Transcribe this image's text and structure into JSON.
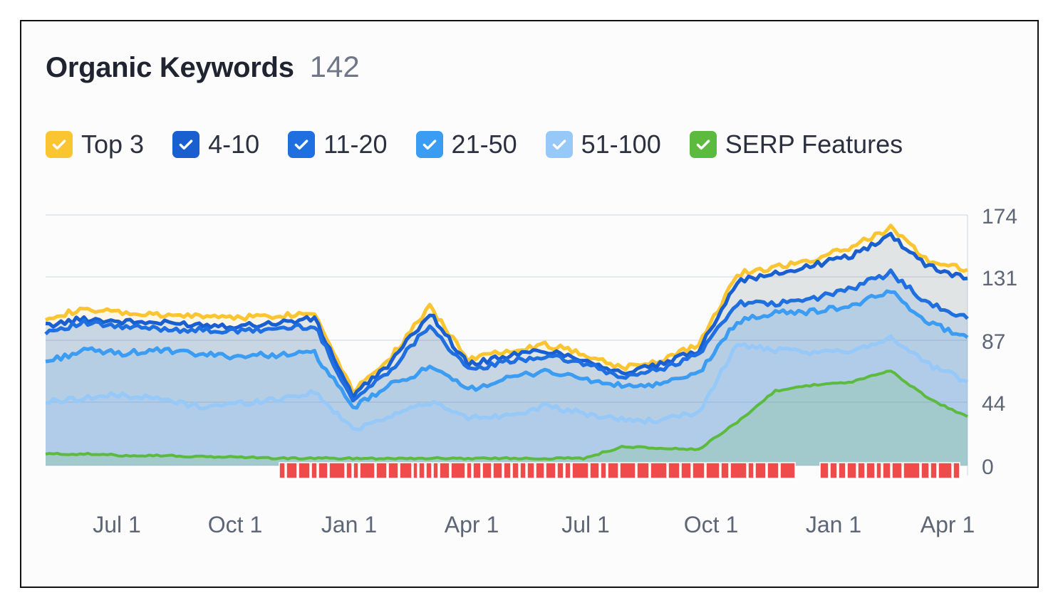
{
  "header": {
    "title": "Organic Keywords",
    "count": "142"
  },
  "legend": [
    {
      "label": "Top 3",
      "color": "#fbc531",
      "checked": true
    },
    {
      "label": "4-10",
      "color": "#1a5fd0",
      "checked": true
    },
    {
      "label": "11-20",
      "color": "#1f6fe0",
      "checked": true
    },
    {
      "label": "21-50",
      "color": "#3a9cf2",
      "checked": true
    },
    {
      "label": "51-100",
      "color": "#96c8f8",
      "checked": true
    },
    {
      "label": "SERP Features",
      "color": "#5cbb3e",
      "checked": true
    }
  ],
  "chart_data": {
    "type": "area",
    "x_ticks": [
      "Jul 1",
      "Oct 1",
      "Jan 1",
      "Apr 1",
      "Jul 1",
      "Oct 1",
      "Jan 1",
      "Apr 1"
    ],
    "y_ticks": [
      0,
      44,
      87,
      131,
      174
    ],
    "ylim": [
      0,
      174
    ],
    "grid": true,
    "x_dates": [
      "May 1",
      "Jun 1",
      "Jul 1",
      "Aug 1",
      "Sep 1",
      "Oct 1",
      "Nov 1",
      "Dec 1",
      "Jan 1",
      "Feb 1",
      "Mar 1",
      "Apr 1",
      "May 1",
      "Jun 1",
      "Jul 1",
      "Aug 1",
      "Sep 1",
      "Oct 1",
      "Nov 1",
      "Dec 1",
      "Jan 1",
      "Feb 1",
      "Mar 1",
      "Apr 1",
      "Apr 10"
    ],
    "series": [
      {
        "name": "Top 3",
        "color": "#fbc531",
        "values": [
          103,
          108,
          106,
          104,
          104,
          103,
          104,
          106,
          52,
          76,
          110,
          74,
          80,
          84,
          78,
          68,
          73,
          84,
          133,
          138,
          143,
          152,
          165,
          142,
          136
        ]
      },
      {
        "name": "4-10",
        "color": "#1a5fd0",
        "values": [
          97,
          102,
          100,
          99,
          98,
          97,
          99,
          102,
          48,
          72,
          106,
          70,
          76,
          80,
          74,
          64,
          70,
          80,
          128,
          133,
          139,
          146,
          160,
          138,
          130
        ]
      },
      {
        "name": "11-20",
        "color": "#1f6fe0",
        "values": [
          93,
          99,
          96,
          95,
          94,
          93,
          95,
          97,
          45,
          67,
          98,
          66,
          72,
          76,
          71,
          61,
          67,
          77,
          113,
          112,
          116,
          123,
          134,
          112,
          102
        ]
      },
      {
        "name": "21-50",
        "color": "#3a9cf2",
        "values": [
          72,
          80,
          78,
          80,
          77,
          76,
          77,
          78,
          40,
          56,
          68,
          53,
          60,
          66,
          60,
          55,
          56,
          64,
          100,
          106,
          107,
          111,
          121,
          99,
          89
        ]
      },
      {
        "name": "51-100",
        "color": "#96c8f8",
        "values": [
          44,
          47,
          49,
          46,
          41,
          43,
          46,
          51,
          25,
          35,
          44,
          33,
          35,
          41,
          36,
          32,
          31,
          37,
          84,
          80,
          78,
          80,
          89,
          70,
          58
        ]
      },
      {
        "name": "SERP Features",
        "color": "#5cbb3e",
        "values": [
          8,
          8,
          7,
          7,
          6,
          6,
          5,
          5,
          5,
          5,
          5,
          5,
          5,
          5,
          5,
          13,
          12,
          11,
          30,
          52,
          56,
          58,
          66,
          46,
          34
        ]
      }
    ]
  }
}
